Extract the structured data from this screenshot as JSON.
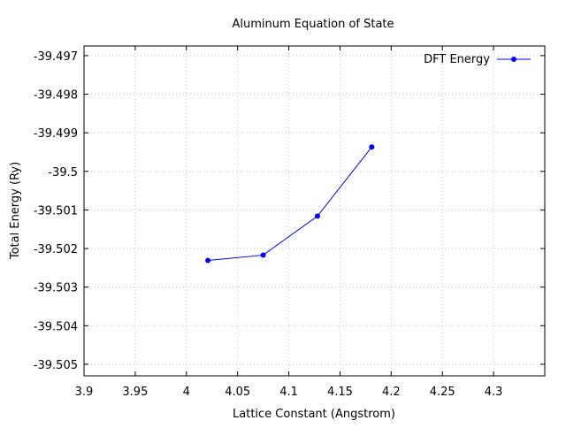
{
  "chart_data": {
    "type": "line",
    "title": "Aluminum Equation of State",
    "xlabel": "Lattice Constant (Angstrom)",
    "ylabel": "Total Energy (Ry)",
    "xlim": [
      3.9,
      4.35
    ],
    "ylim": [
      -39.5053,
      -39.49675
    ],
    "x_ticks": [
      "3.9",
      "3.95",
      "4",
      "4.05",
      "4.1",
      "4.15",
      "4.2",
      "4.25",
      "4.3"
    ],
    "x_tick_values": [
      3.9,
      3.95,
      4.0,
      4.05,
      4.1,
      4.15,
      4.2,
      4.25,
      4.3
    ],
    "y_ticks": [
      "-39.497",
      "-39.498",
      "-39.499",
      "-39.5",
      "-39.501",
      "-39.502",
      "-39.503",
      "-39.504",
      "-39.505"
    ],
    "y_tick_values": [
      -39.497,
      -39.498,
      -39.499,
      -39.5,
      -39.501,
      -39.502,
      -39.503,
      -39.504,
      -39.505
    ],
    "grid": true,
    "legend_position": "top-right",
    "series": [
      {
        "name": "DFT Energy",
        "color": "#0000ff",
        "marker": "circle",
        "x": [
          4.021,
          4.075,
          4.128,
          4.181
        ],
        "y": [
          -39.50231,
          -39.50217,
          -39.50116,
          -39.49937
        ]
      }
    ]
  }
}
